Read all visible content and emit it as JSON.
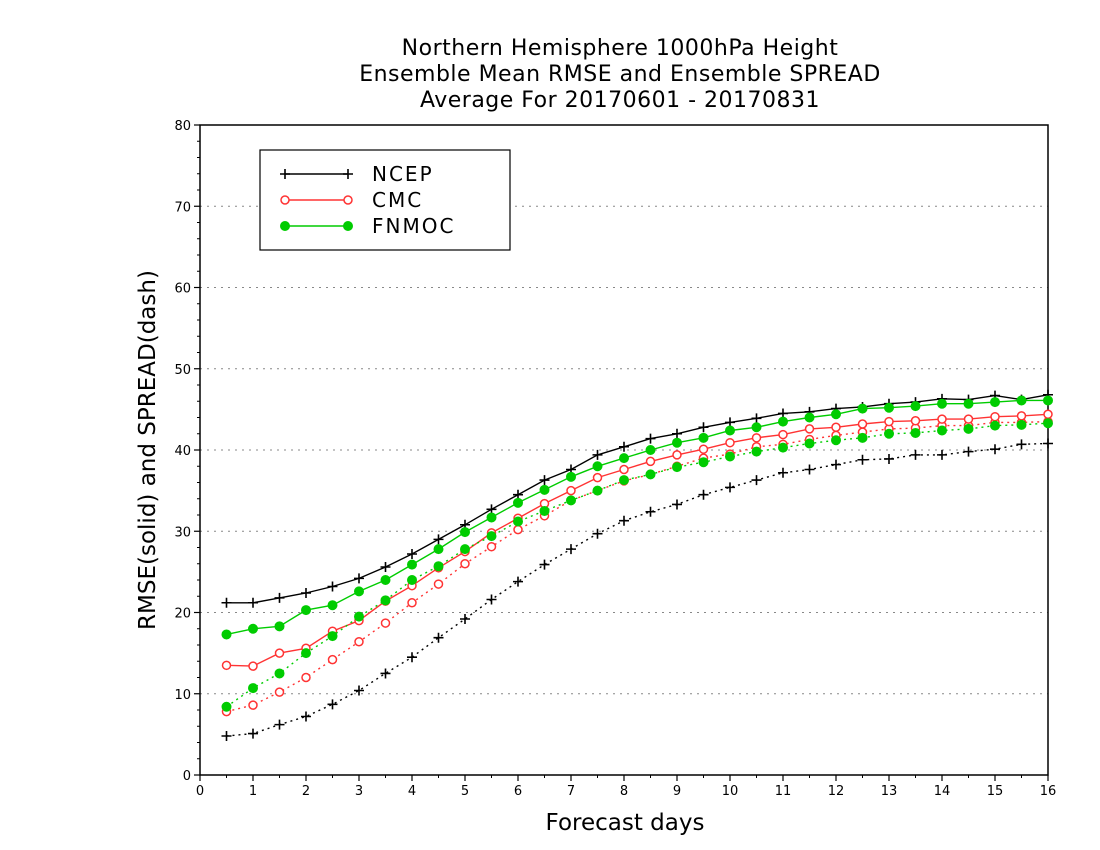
{
  "chart_data": {
    "type": "line",
    "title": [
      "Northern Hemisphere 1000hPa Height",
      "Ensemble Mean RMSE and Ensemble SPREAD",
      "Average For 20170601 - 20170831"
    ],
    "xlabel": "Forecast days",
    "ylabel": "RMSE(solid) and SPREAD(dash)",
    "xlim": [
      0,
      16
    ],
    "ylim": [
      0,
      80
    ],
    "xticks": [
      "0",
      "1",
      "2",
      "3",
      "4",
      "5",
      "6",
      "7",
      "8",
      "9",
      "10",
      "11",
      "12",
      "13",
      "14",
      "15",
      "16"
    ],
    "yticks": [
      "0",
      "10",
      "20",
      "30",
      "40",
      "50",
      "60",
      "70",
      "80"
    ],
    "grid": "horizontal dotted",
    "legend_position": "top-left",
    "x": [
      0.5,
      1,
      1.5,
      2,
      2.5,
      3,
      3.5,
      4,
      4.5,
      5,
      5.5,
      6,
      6.5,
      7,
      7.5,
      8,
      8.5,
      9,
      9.5,
      10,
      10.5,
      11,
      11.5,
      12,
      12.5,
      13,
      13.5,
      14,
      14.5,
      15,
      15.5,
      16
    ],
    "series": [
      {
        "name": "NCEP",
        "color": "#000000",
        "marker": "plus",
        "rmse": [
          21.2,
          21.2,
          21.8,
          22.4,
          23.2,
          24.2,
          25.6,
          27.2,
          29.0,
          30.8,
          32.7,
          34.5,
          36.3,
          37.6,
          39.4,
          40.4,
          41.4,
          42.0,
          42.8,
          43.4,
          43.9,
          44.5,
          44.7,
          45.1,
          45.3,
          45.7,
          45.9,
          46.3,
          46.2,
          46.7,
          46.2,
          46.8
        ],
        "spread": [
          4.8,
          5.1,
          6.2,
          7.2,
          8.7,
          10.4,
          12.5,
          14.5,
          16.9,
          19.2,
          21.6,
          23.8,
          25.9,
          27.8,
          29.7,
          31.3,
          32.4,
          33.3,
          34.5,
          35.4,
          36.3,
          37.2,
          37.6,
          38.2,
          38.8,
          38.9,
          39.4,
          39.4,
          39.8,
          40.1,
          40.7,
          40.8
        ]
      },
      {
        "name": "CMC",
        "color": "#ff3333",
        "marker": "open-circle",
        "rmse": [
          13.5,
          13.4,
          15.0,
          15.6,
          17.7,
          19.0,
          21.4,
          23.3,
          25.5,
          27.5,
          29.8,
          31.6,
          33.4,
          35.0,
          36.6,
          37.6,
          38.6,
          39.4,
          40.1,
          40.9,
          41.5,
          41.9,
          42.6,
          42.8,
          43.2,
          43.5,
          43.6,
          43.8,
          43.8,
          44.1,
          44.2,
          44.4
        ],
        "spread": [
          7.8,
          8.6,
          10.2,
          12.0,
          14.2,
          16.4,
          18.7,
          21.2,
          23.5,
          26.0,
          28.1,
          30.2,
          31.9,
          33.8,
          35.0,
          36.2,
          37.0,
          38.0,
          39.0,
          39.5,
          40.4,
          40.7,
          41.3,
          41.8,
          42.2,
          42.6,
          42.7,
          43.0,
          43.0,
          43.4,
          43.4,
          43.5
        ]
      },
      {
        "name": "FNMOC",
        "color": "#00cc00",
        "marker": "filled-circle",
        "rmse": [
          17.3,
          18.0,
          18.3,
          20.3,
          20.9,
          22.6,
          24.0,
          25.9,
          27.8,
          29.9,
          31.7,
          33.5,
          35.1,
          36.7,
          38.0,
          39.0,
          40.0,
          40.9,
          41.5,
          42.4,
          42.8,
          43.5,
          44.0,
          44.4,
          45.1,
          45.2,
          45.4,
          45.7,
          45.7,
          45.9,
          46.1,
          46.1
        ],
        "spread": [
          8.4,
          10.7,
          12.5,
          15.0,
          17.1,
          19.5,
          21.5,
          24.0,
          25.7,
          27.8,
          29.4,
          31.2,
          32.5,
          33.8,
          35.0,
          36.3,
          37.0,
          37.9,
          38.5,
          39.2,
          39.8,
          40.3,
          40.8,
          41.2,
          41.5,
          42.0,
          42.1,
          42.4,
          42.6,
          43.0,
          43.1,
          43.3
        ]
      }
    ]
  }
}
